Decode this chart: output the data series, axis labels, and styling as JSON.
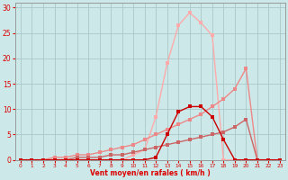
{
  "bg_color": "#cce8e8",
  "grid_color": "#aac8c8",
  "axis_color": "#dd0000",
  "xlabel": "Vent moyen/en rafales ( km/h )",
  "xlim": [
    -0.5,
    23.5
  ],
  "ylim": [
    0,
    31
  ],
  "yticks": [
    0,
    5,
    10,
    15,
    20,
    25,
    30
  ],
  "xticks": [
    0,
    1,
    2,
    3,
    4,
    5,
    6,
    7,
    8,
    9,
    10,
    11,
    12,
    13,
    14,
    15,
    16,
    17,
    18,
    19,
    20,
    21,
    22,
    23
  ],
  "series": [
    {
      "x": [
        0,
        1,
        2,
        3,
        4,
        5,
        6,
        7,
        8,
        9,
        10,
        11,
        12,
        13,
        14,
        15,
        16,
        17,
        18,
        19,
        20,
        21,
        22,
        23
      ],
      "y": [
        0,
        0,
        0,
        0,
        0,
        0,
        0,
        0,
        0,
        0,
        1,
        2,
        8.5,
        19,
        26.5,
        29,
        27,
        24.5,
        0,
        0,
        0,
        0,
        0,
        0
      ],
      "color": "#ffaaaa",
      "lw": 1.0,
      "ms": 2.5
    },
    {
      "x": [
        0,
        1,
        2,
        3,
        4,
        5,
        6,
        7,
        8,
        9,
        10,
        11,
        12,
        13,
        14,
        15,
        16,
        17,
        18,
        19,
        20,
        21,
        22,
        23
      ],
      "y": [
        0,
        0,
        0,
        0.5,
        0.5,
        1,
        1,
        1.5,
        2,
        2.5,
        3,
        4,
        5,
        6,
        7,
        8,
        9,
        10.5,
        12,
        14,
        18,
        0,
        0,
        0
      ],
      "color": "#ee8888",
      "lw": 1.0,
      "ms": 2.5
    },
    {
      "x": [
        0,
        1,
        2,
        3,
        4,
        5,
        6,
        7,
        8,
        9,
        10,
        11,
        12,
        13,
        14,
        15,
        16,
        17,
        18,
        19,
        20,
        21,
        22,
        23
      ],
      "y": [
        0,
        0,
        0,
        0,
        0,
        0.5,
        0.5,
        0.5,
        1,
        1,
        1.5,
        2,
        2.5,
        3,
        3.5,
        4,
        4.5,
        5,
        5.5,
        6.5,
        8,
        0,
        0,
        0
      ],
      "color": "#cc6666",
      "lw": 1.0,
      "ms": 2.5
    },
    {
      "x": [
        0,
        1,
        2,
        3,
        4,
        5,
        6,
        7,
        8,
        9,
        10,
        11,
        12,
        13,
        14,
        15,
        16,
        17,
        18,
        19,
        20,
        21,
        22,
        23
      ],
      "y": [
        0,
        0,
        0,
        0,
        0,
        0,
        0,
        0,
        0,
        0,
        0,
        0,
        0.5,
        5,
        9.5,
        10.5,
        10.5,
        8.5,
        4,
        0,
        0,
        0,
        0,
        0
      ],
      "color": "#cc0000",
      "lw": 1.0,
      "ms": 2.5
    }
  ]
}
